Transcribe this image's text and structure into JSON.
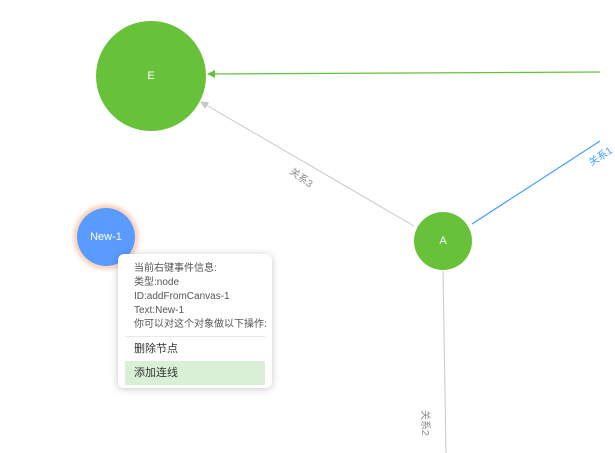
{
  "nodes": {
    "e": {
      "text": "E",
      "color": "#67c23a"
    },
    "a": {
      "text": "A",
      "color": "#67c23a"
    },
    "new1": {
      "text": "New-1",
      "color": "#5a9bff"
    }
  },
  "edges": {
    "rel1": {
      "label": "关系1",
      "color": "#409eff"
    },
    "rel2": {
      "label": "关系2",
      "color": "#c8c8c8"
    },
    "rel3": {
      "label": "关系3",
      "color": "#c8c8c8"
    },
    "to_e": {
      "color": "#67c23a"
    }
  },
  "context_menu": {
    "info_title": "当前右键事件信息:",
    "type_line": "类型:node",
    "id_line": "ID:addFromCanvas-1",
    "text_line": "Text:New-1",
    "prompt_line": "你可以对这个对象做以下操作:",
    "items": [
      {
        "label": "删除节点"
      },
      {
        "label": "添加连线"
      }
    ]
  }
}
